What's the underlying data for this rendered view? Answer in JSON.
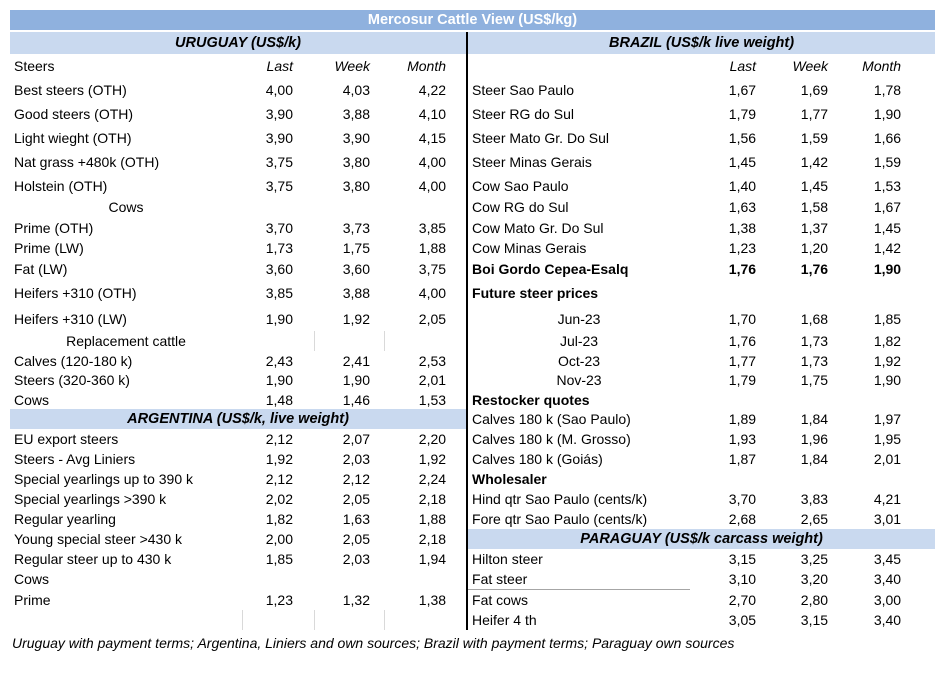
{
  "title": "Mercosur Cattle View (US$/kg)",
  "footnote": "Uruguay with payment terms; Argentina, Liniers and own sources; Brazil with payment terms; Paraguay own sources",
  "colors": {
    "title_bar_bg": "#8FB1DE",
    "title_text": "#FFFFFF",
    "section_bar_bg": "#C9D9EF",
    "divider": "#000000",
    "tick_line": "#D9D9D9",
    "separator_line": "#A6A6A6"
  },
  "column_headers": [
    "Last",
    "Week",
    "Month"
  ],
  "table": {
    "rows": [
      {
        "h": 22,
        "left": {
          "kind": "section",
          "name": "uruguay",
          "label": "URUGUAY (US$/k)"
        },
        "right": {
          "kind": "section",
          "name": "brazil",
          "label": "BRAZIL  (US$/k live weight)"
        }
      },
      {
        "h": 24,
        "left": {
          "kind": "cols-header",
          "label": "Steers"
        },
        "right": {
          "kind": "cols-header",
          "label": ""
        }
      },
      {
        "h": 24,
        "left": {
          "kind": "data",
          "label": "Best steers (OTH)",
          "values": [
            "4,00",
            "4,03",
            "4,22"
          ]
        },
        "right": {
          "kind": "data",
          "label": "Steer Sao Paulo",
          "values": [
            "1,67",
            "1,69",
            "1,78"
          ]
        }
      },
      {
        "h": 24,
        "left": {
          "kind": "data",
          "label": "Good steers (OTH)",
          "values": [
            "3,90",
            "3,88",
            "4,10"
          ]
        },
        "right": {
          "kind": "data",
          "label": "Steer RG do Sul",
          "values": [
            "1,79",
            "1,77",
            "1,90"
          ]
        }
      },
      {
        "h": 24,
        "left": {
          "kind": "data",
          "label": "Light wieght (OTH)",
          "values": [
            "3,90",
            "3,90",
            "4,15"
          ]
        },
        "right": {
          "kind": "data",
          "label": "Steer Mato Gr. Do Sul",
          "values": [
            "1,56",
            "1,59",
            "1,66"
          ]
        }
      },
      {
        "h": 24,
        "left": {
          "kind": "data",
          "label": "Nat grass +480k (OTH)",
          "values": [
            "3,75",
            "3,80",
            "4,00"
          ]
        },
        "right": {
          "kind": "data",
          "label": "Steer Minas Gerais",
          "values": [
            "1,45",
            "1,42",
            "1,59"
          ]
        }
      },
      {
        "h": 23,
        "left": {
          "kind": "data",
          "label": "Holstein (OTH)",
          "values": [
            "3,75",
            "3,80",
            "4,00"
          ]
        },
        "right": {
          "kind": "data",
          "label": "Cow Sao Paulo",
          "values": [
            "1,40",
            "1,45",
            "1,53"
          ]
        }
      },
      {
        "h": 20,
        "left": {
          "kind": "data",
          "label": "Cows",
          "center": true,
          "values": [
            "",
            "",
            ""
          ]
        },
        "right": {
          "kind": "data",
          "label": "Cow RG do Sul",
          "values": [
            "1,63",
            "1,58",
            "1,67"
          ]
        }
      },
      {
        "h": 21,
        "left": {
          "kind": "data",
          "label": "Prime (OTH)",
          "values": [
            "3,70",
            "3,73",
            "3,85"
          ]
        },
        "right": {
          "kind": "data",
          "label": "Cow Mato Gr. Do Sul",
          "values": [
            "1,38",
            "1,37",
            "1,45"
          ]
        }
      },
      {
        "h": 20,
        "left": {
          "kind": "data",
          "label": "Prime (LW)",
          "values": [
            "1,73",
            "1,75",
            "1,88"
          ]
        },
        "right": {
          "kind": "data",
          "label": "Cow Minas Gerais",
          "values": [
            "1,23",
            "1,20",
            "1,42"
          ]
        }
      },
      {
        "h": 22,
        "left": {
          "kind": "data",
          "label": "Fat (LW)",
          "values": [
            "3,60",
            "3,60",
            "3,75"
          ]
        },
        "right": {
          "kind": "data",
          "label": "Boi Gordo Cepea-Esalq",
          "bold": true,
          "values": [
            "1,76",
            "1,76",
            "1,90"
          ]
        }
      },
      {
        "h": 26,
        "left": {
          "kind": "data",
          "label": "Heifers +310 (OTH)",
          "values": [
            "3,85",
            "3,88",
            "4,00"
          ]
        },
        "right": {
          "kind": "data",
          "label": "Future steer prices",
          "bold": true,
          "values": [
            "",
            "",
            ""
          ]
        }
      },
      {
        "h": 25,
        "left": {
          "kind": "data",
          "label": "Heifers +310 (LW)",
          "values": [
            "1,90",
            "1,92",
            "2,05"
          ]
        },
        "right": {
          "kind": "data",
          "label": "Jun-23",
          "center": true,
          "values": [
            "1,70",
            "1,68",
            "1,85"
          ]
        }
      },
      {
        "h": 20,
        "left": {
          "kind": "data",
          "label": "Replacement cattle",
          "center": true,
          "values": [
            "",
            "",
            ""
          ],
          "ticks": [
            2,
            3
          ]
        },
        "right": {
          "kind": "data",
          "label": "Jul-23",
          "center": true,
          "values": [
            "1,76",
            "1,73",
            "1,82"
          ]
        }
      },
      {
        "h": 19,
        "left": {
          "kind": "data",
          "label": "Calves (120-180 k)",
          "values": [
            "2,43",
            "2,41",
            "2,53"
          ]
        },
        "right": {
          "kind": "data",
          "label": "Oct-23",
          "center": true,
          "values": [
            "1,77",
            "1,73",
            "1,92"
          ]
        }
      },
      {
        "h": 20,
        "left": {
          "kind": "data",
          "label": "Steers (320-360 k)",
          "values": [
            "1,90",
            "1,90",
            "2,01"
          ]
        },
        "right": {
          "kind": "data",
          "label": "Nov-23",
          "center": true,
          "values": [
            "1,79",
            "1,75",
            "1,90"
          ]
        }
      },
      {
        "h": 19,
        "left": {
          "kind": "data",
          "label": "Cows",
          "values": [
            "1,48",
            "1,46",
            "1,53"
          ]
        },
        "right": {
          "kind": "data",
          "label": "Restocker quotes",
          "bold": true,
          "values": [
            "",
            "",
            ""
          ]
        }
      },
      {
        "h": 20,
        "left": {
          "kind": "section",
          "name": "argentina",
          "label": "ARGENTINA (US$/k, live weight)"
        },
        "right": {
          "kind": "data",
          "label": "Calves 180 k (Sao Paulo)",
          "values": [
            "1,89",
            "1,84",
            "1,97"
          ]
        }
      },
      {
        "h": 20,
        "left": {
          "kind": "data",
          "label": "EU export steers",
          "values": [
            "2,12",
            "2,07",
            "2,20"
          ]
        },
        "right": {
          "kind": "data",
          "label": "Calves 180 k (M. Grosso)",
          "values": [
            "1,93",
            "1,96",
            "1,95"
          ]
        }
      },
      {
        "h": 20,
        "left": {
          "kind": "data",
          "label": "Steers - Avg Liniers",
          "values": [
            "1,92",
            "2,03",
            "1,92"
          ]
        },
        "right": {
          "kind": "data",
          "label": "Calves 180 k (Goiás)",
          "values": [
            "1,87",
            "1,84",
            "2,01"
          ]
        }
      },
      {
        "h": 20,
        "left": {
          "kind": "data",
          "label": "Special yearlings up to 390 k",
          "values": [
            "2,12",
            "2,12",
            "2,24"
          ]
        },
        "right": {
          "kind": "data",
          "label": "Wholesaler",
          "bold": true,
          "values": [
            "",
            "",
            ""
          ]
        }
      },
      {
        "h": 20,
        "left": {
          "kind": "data",
          "label": "Special yearlings >390 k",
          "values": [
            "2,02",
            "2,05",
            "2,18"
          ]
        },
        "right": {
          "kind": "data",
          "label": "Hind qtr Sao Paulo (cents/k)",
          "values": [
            "3,70",
            "3,83",
            "4,21"
          ]
        }
      },
      {
        "h": 20,
        "left": {
          "kind": "data",
          "label": "Regular yearling",
          "values": [
            "1,82",
            "1,63",
            "1,88"
          ]
        },
        "right": {
          "kind": "data",
          "label": "Fore qtr Sao Paulo (cents/k)",
          "values": [
            "2,68",
            "2,65",
            "3,01"
          ]
        }
      },
      {
        "h": 20,
        "left": {
          "kind": "data",
          "label": "Young special steer >430 k",
          "values": [
            "2,00",
            "2,05",
            "2,18"
          ]
        },
        "right": {
          "kind": "section",
          "name": "paraguay",
          "label": "PARAGUAY  (US$/k carcass weight)"
        }
      },
      {
        "h": 20,
        "left": {
          "kind": "data",
          "label": "Regular steer up to 430 k",
          "values": [
            "1,85",
            "2,03",
            "1,94"
          ]
        },
        "right": {
          "kind": "data",
          "label": "Hilton steer",
          "values": [
            "3,15",
            "3,25",
            "3,45"
          ]
        }
      },
      {
        "h": 20,
        "left": {
          "kind": "data",
          "label": "Cows",
          "values": [
            "",
            "",
            ""
          ]
        },
        "right": {
          "kind": "data",
          "label": "Fat steer",
          "underline": true,
          "values": [
            "3,10",
            "3,20",
            "3,40"
          ]
        }
      },
      {
        "h": 21,
        "left": {
          "kind": "data",
          "label": "Prime",
          "values": [
            "1,23",
            "1,32",
            "1,38"
          ]
        },
        "right": {
          "kind": "data",
          "label": "Fat cows",
          "values": [
            "2,70",
            "2,80",
            "3,00"
          ]
        }
      },
      {
        "h": 20,
        "left": {
          "kind": "data",
          "label": "",
          "values": [
            "",
            "",
            ""
          ],
          "ticks": [
            1,
            2,
            3
          ]
        },
        "right": {
          "kind": "data",
          "label": "Heifer 4 th",
          "values": [
            "3,05",
            "3,15",
            "3,40"
          ]
        }
      }
    ]
  }
}
